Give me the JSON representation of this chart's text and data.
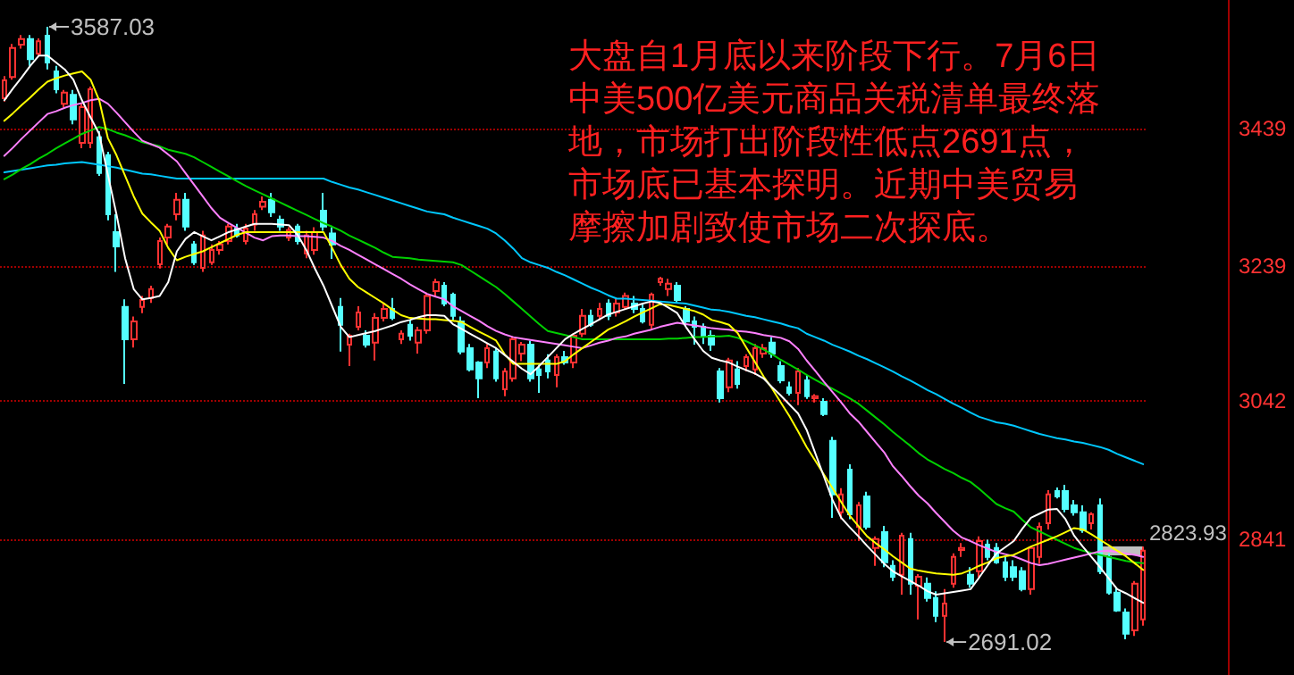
{
  "chart_data": {
    "type": "candlestick",
    "annotations": [
      "3587.03",
      "2691.02",
      "大盘自1月底以来阶段下行。7月6日中美500亿美元商品关税清单最终落地，市场打出阶段性低点2691点，市场底已基本探明。近期中美贸易摩擦加剧致使市场二次探底。"
    ],
    "categories": [
      null,
      null,
      null,
      null,
      null,
      null,
      null,
      null,
      null,
      null,
      null,
      null,
      null,
      null,
      null,
      null,
      null,
      null,
      null,
      null,
      null,
      null,
      null,
      null,
      null,
      null,
      null,
      null,
      null,
      null,
      null,
      null,
      null,
      null,
      null,
      null,
      null,
      null,
      null,
      null,
      null,
      null,
      null,
      null,
      null,
      null,
      null,
      null,
      null,
      null,
      null,
      null,
      null,
      null,
      null,
      null,
      null,
      null,
      null,
      null,
      null,
      null,
      null,
      null,
      null,
      null,
      null,
      null,
      null,
      null,
      null,
      null,
      null,
      null,
      null,
      null,
      null,
      null,
      null,
      null,
      null,
      null,
      null,
      null,
      null,
      null,
      null,
      null,
      null,
      null,
      null,
      null,
      null,
      null,
      null,
      null,
      null,
      null,
      null,
      null,
      null,
      null,
      null,
      null,
      null,
      null,
      null,
      null,
      null,
      null,
      null,
      null,
      null,
      null,
      null,
      null,
      null,
      null,
      null,
      null,
      null,
      null,
      null,
      null,
      null,
      null,
      null,
      null,
      null,
      null,
      null,
      null,
      null
    ],
    "ohlc": [
      [
        3483,
        3515,
        3478,
        3509
      ],
      [
        3514,
        3562,
        3510,
        3556
      ],
      [
        3561,
        3575,
        3555,
        3569
      ],
      [
        3569,
        3575,
        3530,
        3540
      ],
      [
        3548,
        3570,
        3545,
        3566
      ],
      [
        3574,
        3587.03,
        3525,
        3535
      ],
      [
        3522,
        3530,
        3490,
        3496
      ],
      [
        3475,
        3495,
        3470,
        3491
      ],
      [
        3488,
        3495,
        3445,
        3452
      ],
      [
        3418,
        3475,
        3410,
        3470
      ],
      [
        3418,
        3500,
        3410,
        3496
      ],
      [
        3426,
        3435,
        3370,
        3374
      ],
      [
        3400,
        3405,
        3305,
        3314
      ],
      [
        3288,
        3314,
        3230,
        3267
      ],
      [
        3179,
        3190,
        3067,
        3132
      ],
      [
        3132,
        3165,
        3120,
        3158
      ],
      [
        3179,
        3195,
        3170,
        3189
      ],
      [
        3192,
        3210,
        3185,
        3205
      ],
      [
        3241,
        3280,
        3235,
        3275
      ],
      [
        3280,
        3300,
        3270,
        3296
      ],
      [
        3314,
        3345,
        3305,
        3335
      ],
      [
        3335,
        3345,
        3290,
        3296
      ],
      [
        3270,
        3275,
        3240,
        3244
      ],
      [
        3236,
        3290,
        3230,
        3283
      ],
      [
        3244,
        3270,
        3240,
        3262
      ],
      [
        3262,
        3275,
        3255,
        3270
      ],
      [
        3275,
        3300,
        3270,
        3296
      ],
      [
        3293,
        3300,
        3280,
        3283
      ],
      [
        3275,
        3300,
        3270,
        3293
      ],
      [
        3299,
        3320,
        3290,
        3314
      ],
      [
        3325,
        3340,
        3320,
        3332
      ],
      [
        3335,
        3345,
        3310,
        3317
      ],
      [
        3306,
        3312,
        3290,
        3296
      ],
      [
        3280,
        3295,
        3275,
        3291
      ],
      [
        3296,
        3300,
        3270,
        3275
      ],
      [
        3257,
        3290,
        3250,
        3283
      ],
      [
        3262,
        3295,
        3255,
        3288
      ],
      [
        3319,
        3345,
        3290,
        3296
      ],
      [
        3286,
        3295,
        3249,
        3270
      ],
      [
        3179,
        3192,
        3114,
        3153
      ],
      [
        3124,
        3140,
        3093,
        3137
      ],
      [
        3150,
        3180,
        3145,
        3171
      ],
      [
        3137,
        3145,
        3120,
        3124
      ],
      [
        3127,
        3170,
        3101,
        3163
      ],
      [
        3163,
        3185,
        3158,
        3176
      ],
      [
        3176,
        3192,
        3160,
        3163
      ],
      [
        3132,
        3145,
        3125,
        3140
      ],
      [
        3153,
        3160,
        3130,
        3137
      ],
      [
        3127,
        3150,
        3111,
        3145
      ],
      [
        3145,
        3200,
        3140,
        3195
      ],
      [
        3202,
        3220,
        3195,
        3215
      ],
      [
        3210,
        3215,
        3180,
        3184
      ],
      [
        3197,
        3200,
        3160,
        3166
      ],
      [
        3158,
        3165,
        3110,
        3114
      ],
      [
        3119,
        3125,
        3085,
        3088
      ],
      [
        3098,
        3100,
        3046,
        3075
      ],
      [
        3098,
        3125,
        3090,
        3119
      ],
      [
        3114,
        3120,
        3070,
        3075
      ],
      [
        3059,
        3090,
        3049,
        3085
      ],
      [
        3075,
        3135,
        3070,
        3132
      ],
      [
        3111,
        3128,
        3100,
        3124
      ],
      [
        3124,
        3130,
        3070,
        3075
      ],
      [
        3088,
        3095,
        3054,
        3080
      ],
      [
        3101,
        3110,
        3075,
        3085
      ],
      [
        3080,
        3110,
        3062,
        3106
      ],
      [
        3106,
        3115,
        3095,
        3098
      ],
      [
        3098,
        3140,
        3090,
        3137
      ],
      [
        3140,
        3176,
        3135,
        3166
      ],
      [
        3166,
        3175,
        3150,
        3153
      ],
      [
        3166,
        3185,
        3160,
        3176
      ],
      [
        3184,
        3190,
        3160,
        3166
      ],
      [
        3171,
        3192,
        3165,
        3184
      ],
      [
        3179,
        3200,
        3175,
        3195
      ],
      [
        3184,
        3195,
        3170,
        3176
      ],
      [
        3176,
        3185,
        3155,
        3158
      ],
      [
        3153,
        3200,
        3145,
        3197
      ],
      [
        3215,
        3223,
        3210,
        3220
      ],
      [
        3205,
        3220,
        3195,
        3213
      ],
      [
        3210,
        3215,
        3185,
        3189
      ],
      [
        3176,
        3180,
        3150,
        3158
      ],
      [
        3158,
        3165,
        3124,
        3150
      ],
      [
        3150,
        3155,
        3125,
        3137
      ],
      [
        3137,
        3145,
        3115,
        3124
      ],
      [
        3085,
        3090,
        3040,
        3046
      ],
      [
        3062,
        3105,
        3055,
        3101
      ],
      [
        3088,
        3100,
        3060,
        3067
      ],
      [
        3093,
        3110,
        3085,
        3106
      ],
      [
        3088,
        3125,
        3080,
        3119
      ],
      [
        3111,
        3125,
        3105,
        3119
      ],
      [
        3127,
        3135,
        3105,
        3111
      ],
      [
        3093,
        3100,
        3068,
        3072
      ],
      [
        3062,
        3070,
        3050,
        3054
      ],
      [
        3054,
        3090,
        3036,
        3085
      ],
      [
        3072,
        3080,
        3045,
        3049
      ],
      [
        3046,
        3052,
        3040,
        3049
      ],
      [
        3041,
        3046,
        3020,
        3023
      ],
      [
        2984,
        2990,
        2872,
        2906
      ],
      [
        2880,
        2915,
        2870,
        2906
      ],
      [
        2942,
        2950,
        2870,
        2877
      ],
      [
        2859,
        2895,
        2838,
        2890
      ],
      [
        2903,
        2910,
        2855,
        2859
      ],
      [
        2828,
        2845,
        2802,
        2841
      ],
      [
        2851,
        2860,
        2800,
        2807
      ],
      [
        2802,
        2810,
        2780,
        2786
      ],
      [
        2789,
        2850,
        2760,
        2846
      ],
      [
        2841,
        2850,
        2760,
        2776
      ],
      [
        2773,
        2790,
        2724,
        2786
      ],
      [
        2776,
        2785,
        2750,
        2755
      ],
      [
        2755,
        2765,
        2720,
        2729
      ],
      [
        2729,
        2768,
        2691.02,
        2747
      ],
      [
        2776,
        2820,
        2770,
        2815
      ],
      [
        2825,
        2835,
        2815,
        2828
      ],
      [
        2789,
        2800,
        2770,
        2776
      ],
      [
        2794,
        2845,
        2785,
        2838
      ],
      [
        2833,
        2840,
        2810,
        2815
      ],
      [
        2828,
        2835,
        2805,
        2807
      ],
      [
        2807,
        2815,
        2780,
        2786
      ],
      [
        2800,
        2810,
        2780,
        2786
      ],
      [
        2794,
        2800,
        2765,
        2768
      ],
      [
        2768,
        2830,
        2760,
        2828
      ],
      [
        2815,
        2865,
        2805,
        2859
      ],
      [
        2864,
        2912,
        2855,
        2906
      ],
      [
        2911,
        2916,
        2900,
        2903
      ],
      [
        2911,
        2920,
        2880,
        2885
      ],
      [
        2890,
        2898,
        2875,
        2880
      ],
      [
        2880,
        2890,
        2850,
        2854
      ],
      [
        2864,
        2880,
        2855,
        2877
      ],
      [
        2890,
        2900,
        2790,
        2794
      ],
      [
        2815,
        2820,
        2760,
        2763
      ],
      [
        2763,
        2770,
        2735,
        2737
      ],
      [
        2734,
        2740,
        2695,
        2703
      ],
      [
        2708,
        2780,
        2700,
        2776
      ],
      [
        2724,
        2830,
        2715,
        2823.93
      ]
    ],
    "colors": [
      "#ff3232",
      "#ff3232",
      "#ff3232",
      "#54ffff",
      "#ff3232",
      "#54ffff",
      "#54ffff",
      "#ff3232",
      "#54ffff",
      "#ff3232",
      "#ff3232",
      "#54ffff",
      "#54ffff",
      "#54ffff",
      "#54ffff",
      "#ff3232",
      "#ff3232",
      "#ff3232",
      "#ff3232",
      "#ff3232",
      "#ff3232",
      "#54ffff",
      "#54ffff",
      "#ff3232",
      "#ff3232",
      "#ff3232",
      "#ff3232",
      "#54ffff",
      "#ff3232",
      "#ff3232",
      "#ff3232",
      "#54ffff",
      "#54ffff",
      "#ff3232",
      "#54ffff",
      "#ff3232",
      "#ff3232",
      "#54ffff",
      "#54ffff",
      "#54ffff",
      "#ff3232",
      "#ff3232",
      "#54ffff",
      "#ff3232",
      "#ff3232",
      "#54ffff",
      "#ff3232",
      "#54ffff",
      "#ff3232",
      "#ff3232",
      "#ff3232",
      "#54ffff",
      "#54ffff",
      "#54ffff",
      "#54ffff",
      "#54ffff",
      "#ff3232",
      "#54ffff",
      "#ff3232",
      "#ff3232",
      "#ff3232",
      "#54ffff",
      "#54ffff",
      "#54ffff",
      "#ff3232",
      "#54ffff",
      "#ff3232",
      "#ff3232",
      "#54ffff",
      "#ff3232",
      "#54ffff",
      "#ff3232",
      "#ff3232",
      "#54ffff",
      "#54ffff",
      "#ff3232",
      "#ff3232",
      "#ff3232",
      "#54ffff",
      "#54ffff",
      "#54ffff",
      "#54ffff",
      "#54ffff",
      "#54ffff",
      "#ff3232",
      "#54ffff",
      "#ff3232",
      "#ff3232",
      "#ff3232",
      "#54ffff",
      "#54ffff",
      "#54ffff",
      "#ff3232",
      "#54ffff",
      "#ff3232",
      "#54ffff",
      "#54ffff",
      "#ff3232",
      "#54ffff",
      "#ff3232",
      "#54ffff",
      "#ff3232",
      "#54ffff",
      "#54ffff",
      "#ff3232",
      "#54ffff",
      "#ff3232",
      "#54ffff",
      "#54ffff",
      "#ff3232",
      "#ff3232",
      "#ff3232",
      "#54ffff",
      "#ff3232",
      "#54ffff",
      "#54ffff",
      "#54ffff",
      "#54ffff",
      "#54ffff",
      "#ff3232",
      "#ff3232",
      "#ff3232",
      "#54ffff",
      "#54ffff",
      "#54ffff",
      "#54ffff",
      "#ff3232",
      "#54ffff",
      "#54ffff",
      "#54ffff",
      "#54ffff",
      "#ff3232",
      "#ff3232"
    ],
    "series": [
      {
        "type": "line",
        "color": "#00c8ff",
        "values": [
          3375,
          3377,
          3379,
          3381,
          3383,
          3385,
          3386,
          3388,
          3389,
          3390,
          3388,
          3386,
          3384,
          3382,
          3379,
          3376,
          3373,
          3372,
          3370,
          3368,
          3366,
          3366,
          3366,
          3366,
          3366,
          3366,
          3366,
          3366,
          3366,
          3366,
          3366,
          3366,
          3366,
          3366,
          3366,
          3366,
          3366,
          3366,
          3361,
          3357,
          3353,
          3350,
          3346,
          3342,
          3338,
          3334,
          3330,
          3326,
          3322,
          3318,
          3316,
          3314,
          3309,
          3305,
          3301,
          3297,
          3293,
          3286,
          3276,
          3264,
          3250,
          3244,
          3240,
          3236,
          3230,
          3225,
          3219,
          3213,
          3207,
          3202,
          3196,
          3191,
          3191,
          3190,
          3189,
          3188,
          3187,
          3186,
          3185,
          3184,
          3181,
          3178,
          3175,
          3174,
          3172,
          3169,
          3166,
          3164,
          3161,
          3158,
          3155,
          3151,
          3148,
          3140,
          3135,
          3130,
          3124,
          3119,
          3114,
          3108,
          3103,
          3097,
          3091,
          3085,
          3078,
          3072,
          3065,
          3058,
          3052,
          3045,
          3038,
          3032,
          3025,
          3019,
          3015,
          3011,
          3009,
          3006,
          3002,
          2998,
          2994,
          2991,
          2988,
          2986,
          2983,
          2981,
          2978,
          2975,
          2971,
          2965,
          2960,
          2955,
          2950
        ]
      },
      {
        "type": "line",
        "color": "#00d000",
        "values": [
          3365,
          3372,
          3380,
          3387,
          3395,
          3402,
          3410,
          3417,
          3424,
          3431,
          3436,
          3441,
          3438,
          3433,
          3429,
          3424,
          3419,
          3416,
          3413,
          3408,
          3405,
          3402,
          3397,
          3390,
          3383,
          3376,
          3369,
          3362,
          3355,
          3349,
          3343,
          3337,
          3331,
          3325,
          3319,
          3313,
          3307,
          3301,
          3296,
          3290,
          3283,
          3277,
          3271,
          3265,
          3258,
          3252,
          3251,
          3250,
          3248,
          3247,
          3246,
          3245,
          3244,
          3240,
          3232,
          3224,
          3216,
          3208,
          3198,
          3187,
          3176,
          3165,
          3154,
          3144,
          3141,
          3138,
          3135,
          3132,
          3132,
          3132,
          3132,
          3132,
          3132,
          3132,
          3132,
          3132,
          3132,
          3133,
          3133,
          3134,
          3135,
          3135,
          3136,
          3136,
          3137,
          3134,
          3129,
          3123,
          3117,
          3110,
          3102,
          3095,
          3088,
          3080,
          3073,
          3066,
          3060,
          3053,
          3046,
          3038,
          3028,
          3018,
          3008,
          2997,
          2987,
          2977,
          2966,
          2957,
          2950,
          2943,
          2937,
          2930,
          2924,
          2914,
          2903,
          2892,
          2886,
          2881,
          2869,
          2858,
          2852,
          2846,
          2840,
          2834,
          2828,
          2824,
          2821,
          2818,
          2815,
          2812,
          2809,
          2807,
          2806
        ]
      },
      {
        "type": "line",
        "color": "#ff80ff",
        "values": [
          3399,
          3411,
          3424,
          3436,
          3448,
          3460,
          3464,
          3469,
          3473,
          3476,
          3480,
          3482,
          3475,
          3462,
          3448,
          3434,
          3421,
          3416,
          3411,
          3401,
          3391,
          3374,
          3357,
          3340,
          3323,
          3309,
          3301,
          3294,
          3287,
          3280,
          3276,
          3282,
          3283,
          3283,
          3282,
          3282,
          3281,
          3280,
          3275,
          3268,
          3262,
          3255,
          3248,
          3241,
          3234,
          3227,
          3220,
          3212,
          3205,
          3198,
          3194,
          3190,
          3180,
          3173,
          3166,
          3159,
          3151,
          3144,
          3139,
          3135,
          3133,
          3131,
          3129,
          3127,
          3125,
          3123,
          3121,
          3119,
          3123,
          3127,
          3130,
          3134,
          3136,
          3140,
          3143,
          3146,
          3150,
          3153,
          3156,
          3154,
          3152,
          3150,
          3148,
          3147,
          3146,
          3144,
          3143,
          3141,
          3138,
          3136,
          3134,
          3129,
          3118,
          3101,
          3086,
          3070,
          3055,
          3040,
          3024,
          3012,
          2997,
          2982,
          2967,
          2947,
          2933,
          2918,
          2904,
          2893,
          2879,
          2866,
          2853,
          2843,
          2838,
          2832,
          2827,
          2822,
          2819,
          2816,
          2811,
          2806,
          2803,
          2805,
          2808,
          2811,
          2814,
          2817,
          2820,
          2823,
          2824,
          2822,
          2820,
          2818,
          2815
        ]
      },
      {
        "type": "line",
        "color": "#ffff00",
        "values": [
          3450,
          3461,
          3473,
          3484,
          3496,
          3507,
          3512,
          3516,
          3519,
          3522,
          3510,
          3480,
          3425,
          3400,
          3370,
          3340,
          3315,
          3302,
          3290,
          3265,
          3247,
          3252,
          3256,
          3260,
          3266,
          3272,
          3278,
          3284,
          3288,
          3288,
          3288,
          3288,
          3288,
          3288,
          3288,
          3288,
          3288,
          3288,
          3265,
          3240,
          3220,
          3208,
          3200,
          3192,
          3184,
          3175,
          3167,
          3163,
          3162,
          3161,
          3161,
          3160,
          3159,
          3157,
          3150,
          3143,
          3137,
          3130,
          3110,
          3096,
          3096,
          3096,
          3096,
          3096,
          3096,
          3100,
          3110,
          3119,
          3128,
          3137,
          3146,
          3152,
          3158,
          3165,
          3171,
          3177,
          3183,
          3182,
          3179,
          3176,
          3173,
          3168,
          3160,
          3157,
          3153,
          3141,
          3120,
          3099,
          3078,
          3060,
          3040,
          3020,
          2998,
          2975,
          2955,
          2935,
          2915,
          2895,
          2875,
          2860,
          2845,
          2835,
          2826,
          2816,
          2807,
          2798,
          2795,
          2793,
          2791,
          2790,
          2789,
          2791,
          2796,
          2802,
          2807,
          2813,
          2816,
          2818,
          2824,
          2830,
          2835,
          2840,
          2845,
          2851,
          2857,
          2855,
          2848,
          2840,
          2832,
          2824,
          2816,
          2806,
          2796
        ]
      },
      {
        "type": "line",
        "color": "#ffffff",
        "values": [
          3480,
          3497,
          3513,
          3530,
          3545,
          3545,
          3535,
          3525,
          3510,
          3480,
          3455,
          3431,
          3372,
          3314,
          3250,
          3205,
          3190,
          3192,
          3195,
          3215,
          3260,
          3278,
          3288,
          3282,
          3276,
          3282,
          3288,
          3292,
          3296,
          3300,
          3300,
          3300,
          3299,
          3298,
          3284,
          3262,
          3235,
          3210,
          3180,
          3150,
          3135,
          3138,
          3141,
          3144,
          3148,
          3152,
          3157,
          3160,
          3164,
          3167,
          3167,
          3166,
          3154,
          3147,
          3140,
          3133,
          3126,
          3119,
          3109,
          3099,
          3089,
          3081,
          3093,
          3106,
          3119,
          3132,
          3140,
          3147,
          3154,
          3161,
          3168,
          3172,
          3176,
          3180,
          3184,
          3187,
          3185,
          3178,
          3170,
          3150,
          3132,
          3115,
          3105,
          3101,
          3098,
          3092,
          3087,
          3082,
          3075,
          3062,
          3050,
          3037,
          3024,
          3000,
          2966,
          2932,
          2898,
          2872,
          2858,
          2845,
          2831,
          2818,
          2805,
          2794,
          2787,
          2780,
          2773,
          2765,
          2760,
          2762,
          2764,
          2766,
          2768,
          2785,
          2803,
          2820,
          2829,
          2838,
          2856,
          2872,
          2878,
          2884,
          2885,
          2870,
          2846,
          2830,
          2815,
          2800,
          2784,
          2768,
          2762,
          2755,
          2748
        ]
      }
    ],
    "ylim": [
      2643,
      3626
    ],
    "yticks": [
      3439,
      3239,
      3042,
      2841
    ],
    "ref_lines": [
      {
        "axis": "y",
        "value": 2823.93,
        "label": "2823.93",
        "color": "#c0c0c0"
      }
    ],
    "grid": "y",
    "tick_labels": "y"
  }
}
